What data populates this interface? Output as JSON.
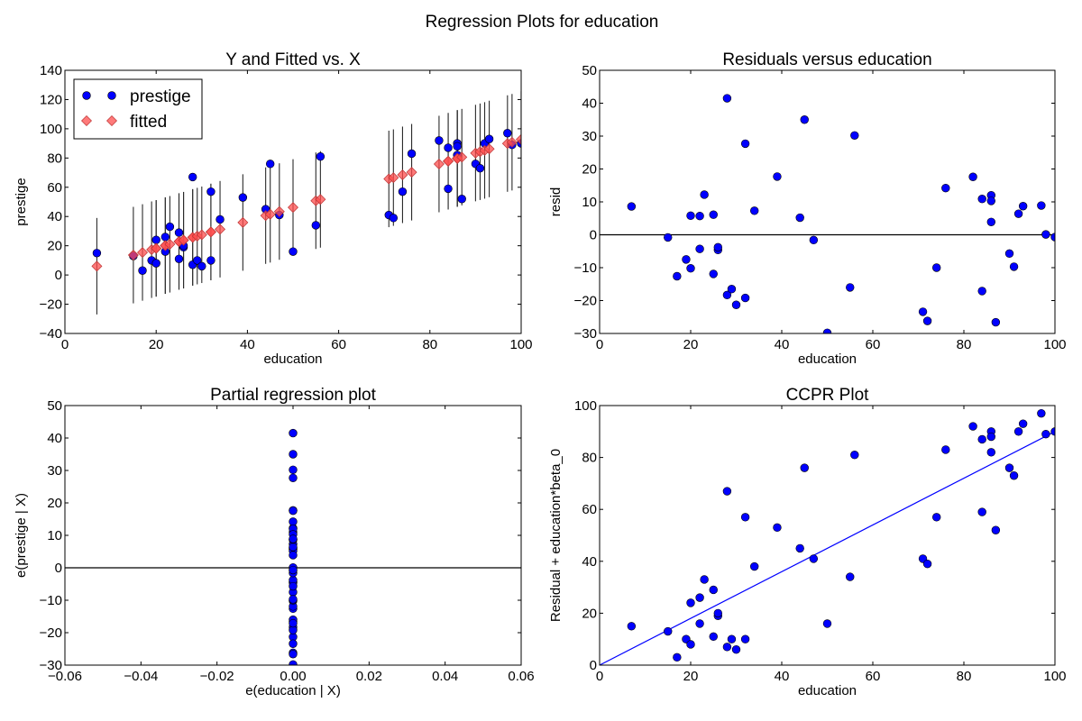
{
  "suptitle": "Regression Plots for education",
  "colors": {
    "point": "#0000ff",
    "fitted": "#ff4d4d",
    "errbar": "#2b2b2b",
    "refline": "#000000",
    "fitline": "#0000ff"
  },
  "chart_data": [
    {
      "id": "p1",
      "type": "scatter",
      "title": "Y and Fitted vs. X",
      "xlabel": "education",
      "ylabel": "prestige",
      "xlim": [
        0,
        100
      ],
      "ylim": [
        -40,
        140
      ],
      "xticks": [
        0,
        20,
        40,
        60,
        80,
        100
      ],
      "yticks": [
        -40,
        -20,
        0,
        20,
        40,
        60,
        80,
        100,
        120,
        140
      ],
      "legend": {
        "position": "top-left",
        "entries": [
          "prestige",
          "fitted"
        ]
      },
      "x": [
        7,
        15,
        17,
        19,
        20,
        20,
        22,
        22,
        23,
        25,
        25,
        26,
        26,
        28,
        28,
        29,
        30,
        32,
        32,
        34,
        39,
        44,
        45,
        47,
        50,
        55,
        56,
        71,
        72,
        74,
        76,
        82,
        84,
        84,
        86,
        86,
        86,
        87,
        90,
        91,
        92,
        93,
        97,
        98,
        100
      ],
      "series": [
        {
          "name": "prestige",
          "marker": "circle",
          "values": [
            15,
            13,
            3,
            10,
            24,
            8,
            16,
            26,
            33,
            29,
            11,
            19,
            20,
            67,
            7,
            10,
            6,
            57,
            10,
            38,
            53,
            45,
            76,
            41,
            16,
            34,
            81,
            41,
            39,
            57,
            83,
            92,
            59,
            87,
            82,
            90,
            88,
            52,
            76,
            73,
            90,
            93,
            97,
            89,
            90
          ]
        },
        {
          "name": "fitted",
          "marker": "diamond",
          "values": [
            6,
            13.6,
            15.4,
            17.3,
            18.2,
            18.2,
            20.1,
            20.1,
            21,
            22.9,
            22.9,
            23.8,
            23.8,
            25.7,
            25.7,
            26.6,
            27.5,
            29.4,
            29.4,
            31.3,
            35.9,
            40.6,
            41.5,
            43.4,
            46.2,
            50.8,
            51.7,
            65.7,
            66.6,
            68.5,
            70.3,
            75.9,
            77.8,
            77.8,
            79.7,
            79.7,
            79.7,
            80.6,
            83.4,
            84.3,
            85.2,
            86.2,
            89.9,
            90.8,
            92.7
          ]
        }
      ],
      "error_bar_halfwidth": 33
    },
    {
      "id": "p2",
      "type": "scatter",
      "title": "Residuals versus education",
      "xlabel": "education",
      "ylabel": "resid",
      "xlim": [
        0,
        100
      ],
      "ylim": [
        -30,
        50
      ],
      "xticks": [
        0,
        20,
        40,
        60,
        80,
        100
      ],
      "yticks": [
        -30,
        -20,
        -10,
        0,
        10,
        20,
        30,
        40,
        50
      ],
      "hline": 0,
      "x": [
        7,
        15,
        17,
        19,
        20,
        20,
        22,
        22,
        23,
        25,
        25,
        26,
        26,
        28,
        28,
        29,
        30,
        32,
        32,
        34,
        39,
        44,
        45,
        47,
        50,
        55,
        56,
        71,
        72,
        74,
        76,
        82,
        84,
        84,
        86,
        86,
        86,
        87,
        90,
        91,
        92,
        93,
        97,
        98,
        100
      ],
      "values": [
        8.6,
        -0.8,
        -12.6,
        -7.5,
        5.8,
        -10.2,
        -4.3,
        5.7,
        12.2,
        6.1,
        -11.9,
        -4.6,
        -3.8,
        41.5,
        -18.3,
        -16.5,
        -21.3,
        27.7,
        -19.2,
        7.3,
        17.7,
        5.2,
        35,
        -1.6,
        -29.8,
        -16,
        30.2,
        -23.4,
        -26.2,
        -10,
        14.2,
        17.6,
        -17.1,
        10.9,
        3.9,
        12,
        10.3,
        -26.6,
        -5.7,
        -9.7,
        6.4,
        8.7,
        8.9,
        0.1,
        -0.7
      ]
    },
    {
      "id": "p3",
      "type": "scatter",
      "title": "Partial regression plot",
      "xlabel": "e(education | X)",
      "ylabel": "e(prestige | X)",
      "xlim": [
        -0.06,
        0.06
      ],
      "ylim": [
        -30,
        50
      ],
      "xticks": [
        -0.06,
        -0.04,
        -0.02,
        0.0,
        0.02,
        0.04,
        0.06
      ],
      "xticklabels": [
        "−0.06",
        "−0.04",
        "−0.02",
        "0.00",
        "0.02",
        "0.04",
        "0.06"
      ],
      "yticks": [
        -30,
        -20,
        -10,
        0,
        10,
        20,
        30,
        40,
        50
      ],
      "hline": 0,
      "x_constant": 0,
      "values": [
        8.6,
        -0.8,
        -12.6,
        -7.5,
        5.8,
        -10.2,
        -4.3,
        5.7,
        12.2,
        6.1,
        -11.9,
        -4.6,
        -3.8,
        41.5,
        -18.3,
        -16.5,
        -21.3,
        27.7,
        -19.2,
        7.3,
        17.7,
        5.2,
        35,
        -1.6,
        -29.8,
        -16,
        30.2,
        -23.4,
        -26.2,
        -10,
        14.2,
        17.6,
        -17.1,
        10.9,
        3.9,
        12,
        10.3,
        -26.6,
        -5.7,
        -9.7,
        6.4,
        8.7,
        8.9,
        0.1,
        -0.7
      ]
    },
    {
      "id": "p4",
      "type": "scatter",
      "title": "CCPR Plot",
      "xlabel": "education",
      "ylabel": "Residual + education*beta_0",
      "xlim": [
        0,
        100
      ],
      "ylim": [
        0,
        100
      ],
      "xticks": [
        0,
        20,
        40,
        60,
        80,
        100
      ],
      "yticks": [
        0,
        20,
        40,
        60,
        80,
        100
      ],
      "fit_line": {
        "x": [
          0,
          100
        ],
        "y": [
          0,
          90
        ]
      },
      "x": [
        7,
        15,
        17,
        19,
        20,
        20,
        22,
        22,
        23,
        25,
        25,
        26,
        26,
        28,
        28,
        29,
        30,
        32,
        32,
        34,
        39,
        44,
        45,
        47,
        50,
        55,
        56,
        71,
        72,
        74,
        76,
        82,
        84,
        84,
        86,
        86,
        86,
        87,
        90,
        91,
        92,
        93,
        97,
        98,
        100
      ],
      "values": [
        15,
        13,
        3,
        10,
        24,
        8,
        16,
        26,
        33,
        29,
        11,
        19,
        20,
        67,
        7,
        10,
        6,
        57,
        10,
        38,
        53,
        45,
        76,
        41,
        16,
        34,
        81,
        41,
        39,
        57,
        83,
        92,
        59,
        87,
        82,
        90,
        88,
        52,
        76,
        73,
        90,
        93,
        97,
        89,
        90
      ]
    }
  ]
}
